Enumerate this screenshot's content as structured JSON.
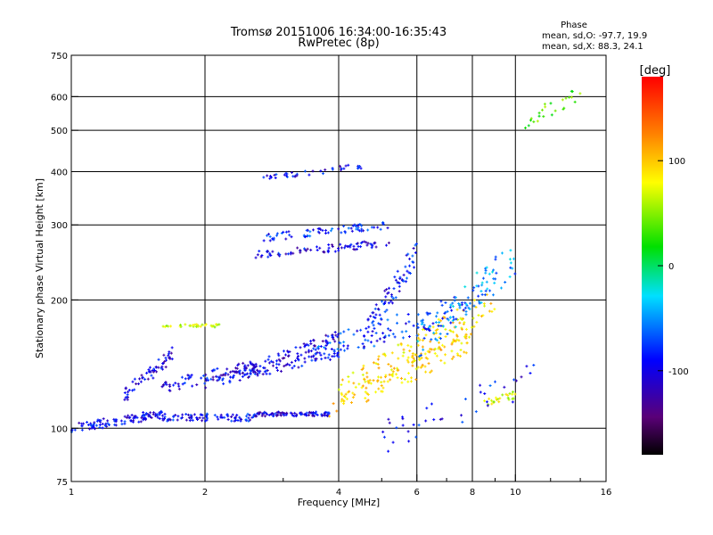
{
  "chart_data": {
    "type": "scatter",
    "title": "Tromsø 20151006 16:34:00-16:35:43",
    "subtitle": "RwPretec (8p)",
    "xlabel": "Frequency [MHz]",
    "ylabel": "Stationary phase Virtual Height [km]",
    "x_scale": "log",
    "y_scale": "log",
    "xlim": [
      1,
      16
    ],
    "ylim": [
      75,
      750
    ],
    "x_ticks": [
      1,
      2,
      4,
      6,
      8,
      10,
      16
    ],
    "x_tick_labels": [
      "1",
      "2",
      "4",
      "6",
      "8",
      "10",
      "16"
    ],
    "x_minor_ticks": [
      3,
      5,
      7,
      9,
      12,
      14
    ],
    "y_ticks": [
      75,
      100,
      200,
      300,
      400,
      500,
      600,
      750
    ],
    "y_tick_labels": [
      "75",
      "100",
      "200",
      "300",
      "400",
      "500",
      "600",
      "750"
    ],
    "grid_x": [
      2,
      4,
      6,
      8,
      10
    ],
    "grid_y": [
      100,
      200,
      300,
      400,
      500,
      600
    ],
    "grid": true,
    "stats": {
      "header": "Phase",
      "line1": "mean, sd,O: -97.7, 19.9",
      "line2": "mean, sd,X:  88.3, 24.1"
    },
    "colorbar": {
      "label": "[deg]",
      "range": [
        -180,
        180
      ],
      "ticks": [
        100,
        0,
        -100
      ],
      "tick_labels": [
        "100",
        "0",
        "-100"
      ],
      "colormap": "rainbow (black-purple-blue-cyan-green-yellow-orange-red)"
    },
    "traces": [
      {
        "freq": [
          1.0,
          1.6
        ],
        "height": [
          100,
          108
        ],
        "phase": -105,
        "spread": 0.025,
        "n": 110
      },
      {
        "freq": [
          1.6,
          2.6
        ],
        "height": [
          106,
          106
        ],
        "phase": -102,
        "spread": 0.02,
        "n": 90
      },
      {
        "freq": [
          2.6,
          3.9
        ],
        "height": [
          108,
          108
        ],
        "phase": -112,
        "spread": 0.012,
        "n": 90
      },
      {
        "freq": [
          1.3,
          1.7
        ],
        "height": [
          118,
          150
        ],
        "phase": -110,
        "spread": 0.04,
        "n": 60
      },
      {
        "freq": [
          1.6,
          2.6
        ],
        "height": [
          125,
          140
        ],
        "phase": -105,
        "spread": 0.035,
        "n": 70
      },
      {
        "freq": [
          2.0,
          4.0
        ],
        "height": [
          128,
          150
        ],
        "phase": -108,
        "spread": 0.03,
        "n": 90
      },
      {
        "freq": [
          2.4,
          4.0
        ],
        "height": [
          135,
          165
        ],
        "phase": -110,
        "spread": 0.03,
        "n": 80
      },
      {
        "freq": [
          1.6,
          2.2
        ],
        "height": [
          174,
          174
        ],
        "phase": 55,
        "spread": 0.008,
        "n": 30
      },
      {
        "freq": [
          2.6,
          5.2
        ],
        "height": [
          255,
          272
        ],
        "phase": -110,
        "spread": 0.02,
        "n": 80
      },
      {
        "freq": [
          2.7,
          5.2
        ],
        "height": [
          280,
          300
        ],
        "phase": -95,
        "spread": 0.02,
        "n": 70
      },
      {
        "freq": [
          2.7,
          4.5
        ],
        "height": [
          385,
          412
        ],
        "phase": -105,
        "spread": 0.015,
        "n": 40
      },
      {
        "freq": [
          3.8,
          8.0
        ],
        "height": [
          110,
          160
        ],
        "phase": 90,
        "spread": 0.06,
        "n": 110
      },
      {
        "freq": [
          4.0,
          9.0
        ],
        "height": [
          120,
          200
        ],
        "phase": 85,
        "spread": 0.08,
        "n": 140
      },
      {
        "freq": [
          3.5,
          8.0
        ],
        "height": [
          150,
          195
        ],
        "phase": -90,
        "spread": 0.07,
        "n": 110
      },
      {
        "freq": [
          4.5,
          6.0
        ],
        "height": [
          160,
          260
        ],
        "phase": -100,
        "spread": 0.07,
        "n": 80
      },
      {
        "freq": [
          6.0,
          10.0
        ],
        "height": [
          160,
          250
        ],
        "phase": -60,
        "spread": 0.1,
        "n": 90
      },
      {
        "freq": [
          8.5,
          10.0
        ],
        "height": [
          115,
          120
        ],
        "phase": 60,
        "spread": 0.02,
        "n": 25
      },
      {
        "freq": [
          10.5,
          14.0
        ],
        "height": [
          520,
          620
        ],
        "phase": 20,
        "spread": 0.05,
        "n": 25
      },
      {
        "freq": [
          5.0,
          11.0
        ],
        "height": [
          95,
          130
        ],
        "phase": -100,
        "spread": 0.09,
        "n": 40
      }
    ]
  }
}
